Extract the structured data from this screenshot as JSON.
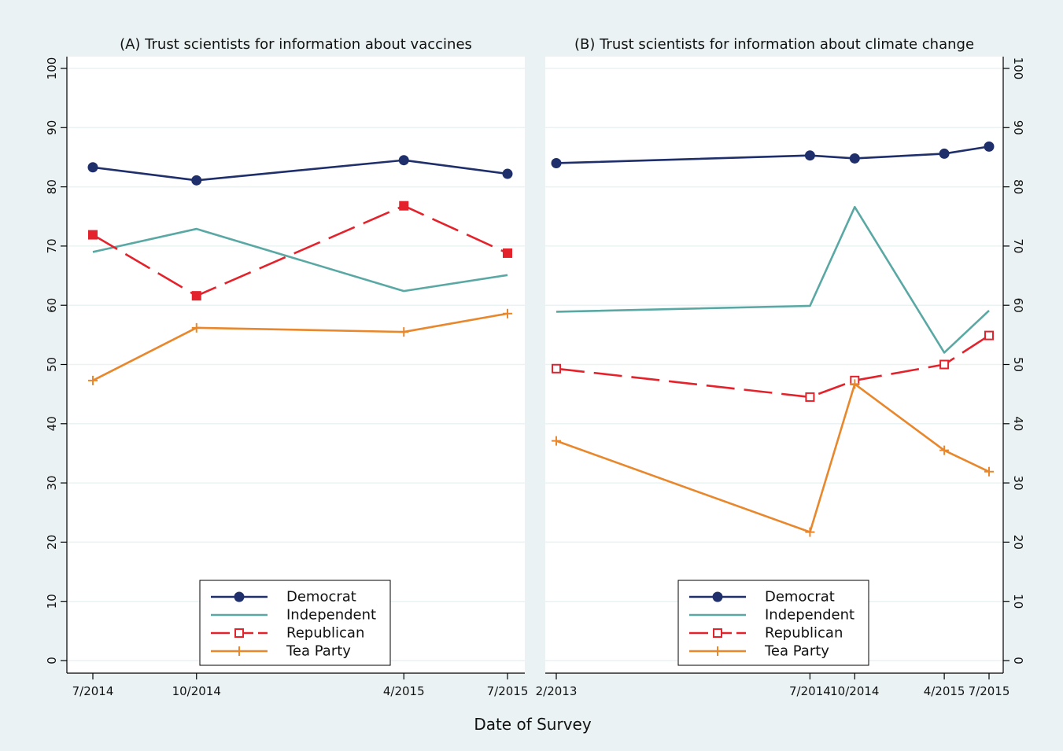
{
  "chart_data": [
    {
      "type": "line",
      "title": "(A) Trust scientists for information about vaccines",
      "xlabel": "Date of Survey",
      "ylabel": "",
      "x": [
        "7/2014",
        "10/2014",
        "4/2015",
        "7/2015"
      ],
      "ylim": [
        0,
        100
      ],
      "yticks": [
        0,
        10,
        20,
        30,
        40,
        50,
        60,
        70,
        80,
        90,
        100
      ],
      "y_axis_side": "left",
      "grid": true,
      "legend_position": "bottom-center",
      "series": [
        {
          "name": "Democrat",
          "color": "#1f2f6b",
          "marker": "filled-circle",
          "dash": "solid",
          "values": [
            83.3,
            81.1,
            84.5,
            82.2
          ]
        },
        {
          "name": "Independent",
          "color": "#5aa8a4",
          "marker": "none",
          "dash": "solid",
          "values": [
            69.0,
            72.9,
            62.4,
            65.1
          ]
        },
        {
          "name": "Republican",
          "color": "#e4222b",
          "marker": "filled-square",
          "dash": "long-dash",
          "values": [
            71.9,
            61.6,
            76.8,
            68.8
          ]
        },
        {
          "name": "Tea Party",
          "color": "#e8872b",
          "marker": "plus",
          "dash": "solid",
          "values": [
            47.3,
            56.2,
            55.5,
            58.6
          ]
        }
      ]
    },
    {
      "type": "line",
      "title": "(B) Trust scientists for information about climate change",
      "xlabel": "Date of Survey",
      "ylabel": "",
      "x": [
        "2/2013",
        "7/2014",
        "10/2014",
        "4/2015",
        "7/2015"
      ],
      "ylim": [
        0,
        100
      ],
      "yticks": [
        0,
        10,
        20,
        30,
        40,
        50,
        60,
        70,
        80,
        90,
        100
      ],
      "y_axis_side": "right",
      "grid": true,
      "legend_position": "bottom-center",
      "series": [
        {
          "name": "Democrat",
          "color": "#1f2f6b",
          "marker": "filled-circle",
          "dash": "solid",
          "values": [
            84.0,
            85.3,
            84.8,
            85.6,
            86.8
          ]
        },
        {
          "name": "Independent",
          "color": "#5aa8a4",
          "marker": "none",
          "dash": "solid",
          "values": [
            58.9,
            59.9,
            76.6,
            52.0,
            59.1
          ]
        },
        {
          "name": "Republican",
          "color": "#e4222b",
          "marker": "hollow-square",
          "dash": "long-dash",
          "values": [
            49.3,
            44.5,
            47.3,
            50.0,
            54.9
          ]
        },
        {
          "name": "Tea Party",
          "color": "#e8872b",
          "marker": "plus",
          "dash": "solid",
          "values": [
            37.1,
            21.7,
            46.7,
            35.5,
            31.9
          ]
        }
      ]
    }
  ],
  "shared_xlabel": "Date of Survey",
  "legend": {
    "entries": [
      {
        "label": "Democrat",
        "color": "#1f2f6b",
        "marker": "filled-circle",
        "dash": "solid"
      },
      {
        "label": "Independent",
        "color": "#5aa8a4",
        "marker": "none",
        "dash": "solid"
      },
      {
        "label": "Republican",
        "color": "#e4222b",
        "marker": "hollow-square",
        "dash": "long-dash"
      },
      {
        "label": "Tea Party",
        "color": "#e8872b",
        "marker": "plus",
        "dash": "solid"
      }
    ]
  },
  "colors": {
    "outer_background": "#eaf2f3",
    "plot_background": "#ffffff",
    "gridline": "#eaf2f3",
    "axis": "#000000"
  }
}
